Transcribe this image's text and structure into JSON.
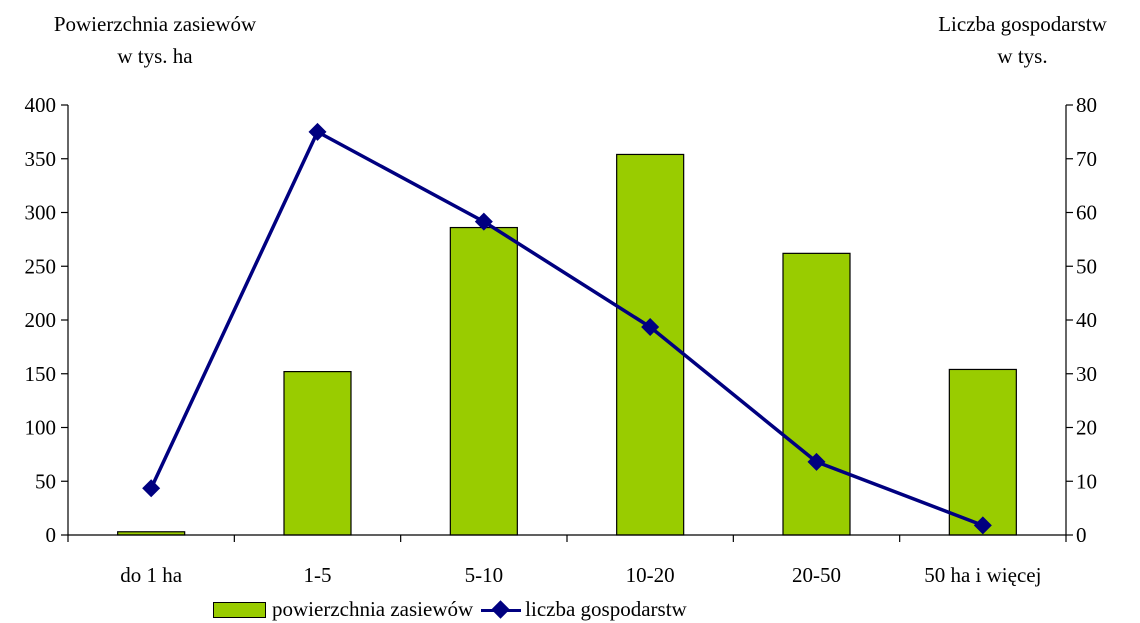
{
  "chart_data": {
    "type": "bar",
    "categories": [
      "do 1 ha",
      "1-5",
      "5-10",
      "10-20",
      "20-50",
      "50 ha i więcej"
    ],
    "series": [
      {
        "name": "powierzchnia zasiewów",
        "type": "bar",
        "axis": "left",
        "color": "#99cc00",
        "values": [
          3,
          152,
          286,
          354,
          262,
          154
        ]
      },
      {
        "name": "liczba gospodarstw",
        "type": "line",
        "axis": "right",
        "color": "#000080",
        "marker": "diamond",
        "values": [
          8.7,
          75,
          58.3,
          38.7,
          13.6,
          1.8
        ]
      }
    ],
    "y_left": {
      "label_lines": [
        "Powierzchnia zasiewów",
        "w tys. ha"
      ],
      "ylim": [
        0,
        400
      ],
      "ticks": [
        0,
        50,
        100,
        150,
        200,
        250,
        300,
        350,
        400
      ]
    },
    "y_right": {
      "label_lines": [
        "Liczba gospodarstw",
        "w tys."
      ],
      "ylim": [
        0,
        80
      ],
      "ticks": [
        0,
        10,
        20,
        30,
        40,
        50,
        60,
        70,
        80
      ]
    },
    "grid": false,
    "legend_position": "bottom"
  }
}
